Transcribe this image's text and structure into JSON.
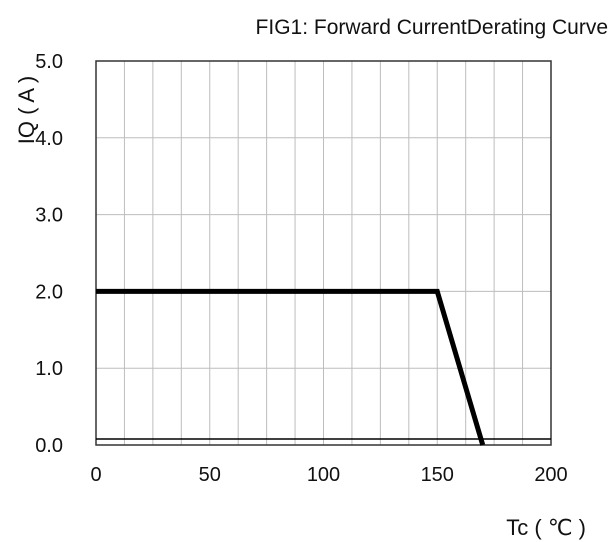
{
  "chart_data": {
    "type": "line",
    "title": "FIG1: Forward CurrentDerating Curve",
    "xlabel": "Tc ( ℃ )",
    "ylabel": "IQ ( A )",
    "xlim": [
      0,
      200
    ],
    "ylim": [
      0,
      5
    ],
    "xticks": [
      0,
      50,
      100,
      150,
      200
    ],
    "xtick_labels": [
      "0",
      "50",
      "100",
      "150",
      "200"
    ],
    "yticks": [
      0,
      1,
      2,
      3,
      4,
      5
    ],
    "ytick_labels": [
      "0.0",
      "1.0",
      "2.0",
      "3.0",
      "4.0",
      "5.0"
    ],
    "grid": true,
    "x_grid_step": 12.5,
    "y_grid_step": 1,
    "series": [
      {
        "x": [
          0,
          150,
          170
        ],
        "y": [
          2.0,
          2.0,
          0.0
        ],
        "color": "#000000"
      }
    ]
  }
}
